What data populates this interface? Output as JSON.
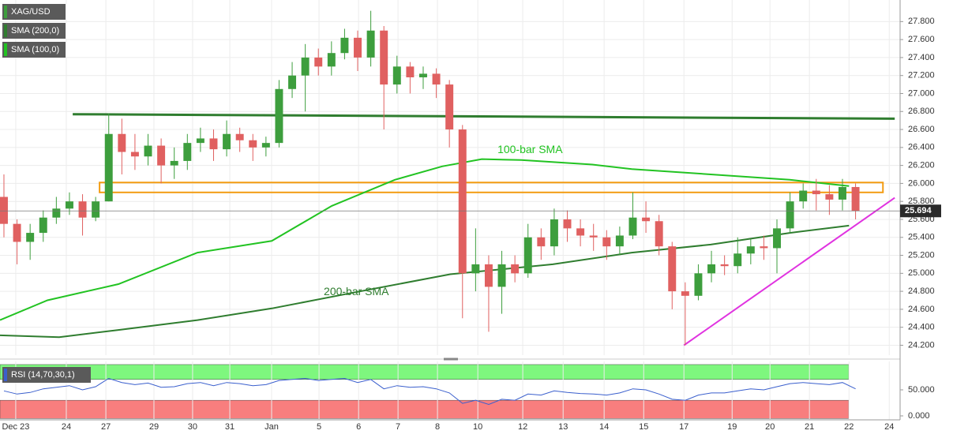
{
  "chart_data": [
    {
      "type": "candlestick",
      "name": "XAG/USD",
      "up_color": "#3d9e3d",
      "down_color": "#e06060",
      "grid": true,
      "xlim": [
        -0.3,
        68.4
      ],
      "ylim": [
        24.09,
        28.04
      ],
      "xticks": [
        {
          "value": 0.9,
          "label": "Dec 23"
        },
        {
          "value": 4.76,
          "label": "24"
        },
        {
          "value": 7.78,
          "label": "27"
        },
        {
          "value": 11.45,
          "label": "29"
        },
        {
          "value": 14.4,
          "label": "30"
        },
        {
          "value": 17.24,
          "label": "31"
        },
        {
          "value": 20.43,
          "label": "Jan"
        },
        {
          "value": 24.05,
          "label": "5"
        },
        {
          "value": 27.07,
          "label": "6"
        },
        {
          "value": 30.08,
          "label": "7"
        },
        {
          "value": 33.09,
          "label": "8"
        },
        {
          "value": 36.17,
          "label": "10"
        },
        {
          "value": 39.6,
          "label": "12"
        },
        {
          "value": 42.68,
          "label": "13"
        },
        {
          "value": 45.81,
          "label": "14"
        },
        {
          "value": 48.83,
          "label": "15"
        },
        {
          "value": 51.9,
          "label": "17"
        },
        {
          "value": 55.58,
          "label": "19"
        },
        {
          "value": 58.47,
          "label": "20"
        },
        {
          "value": 61.48,
          "label": "21"
        },
        {
          "value": 64.5,
          "label": "22"
        },
        {
          "value": 67.57,
          "label": "24"
        }
      ],
      "yticks": [
        {
          "value": 24.2,
          "label": "24.200"
        },
        {
          "value": 24.4,
          "label": "24.400"
        },
        {
          "value": 24.6,
          "label": "24.600"
        },
        {
          "value": 24.8,
          "label": "24.800"
        },
        {
          "value": 25.0,
          "label": "25.000"
        },
        {
          "value": 25.2,
          "label": "25.200"
        },
        {
          "value": 25.4,
          "label": "25.400"
        },
        {
          "value": 25.6,
          "label": "25.600"
        },
        {
          "value": 25.8,
          "label": "25.800"
        },
        {
          "value": 26.0,
          "label": "26.000"
        },
        {
          "value": 26.2,
          "label": "26.200"
        },
        {
          "value": 26.4,
          "label": "26.400"
        },
        {
          "value": 26.6,
          "label": "26.600"
        },
        {
          "value": 26.8,
          "label": "26.800"
        },
        {
          "value": 27.0,
          "label": "27.000"
        },
        {
          "value": 27.2,
          "label": "27.200"
        },
        {
          "value": 27.4,
          "label": "27.400"
        },
        {
          "value": 27.6,
          "label": "27.600"
        },
        {
          "value": 27.8,
          "label": "27.800"
        }
      ],
      "open": [
        25.85,
        25.55,
        25.35,
        25.45,
        25.62,
        25.72,
        25.8,
        25.62,
        25.8,
        26.55,
        26.35,
        26.3,
        26.42,
        26.2,
        26.25,
        26.45,
        26.5,
        26.38,
        26.55,
        26.48,
        26.4,
        26.45,
        27.05,
        27.2,
        27.4,
        27.3,
        27.45,
        27.62,
        27.4,
        27.7,
        27.1,
        27.3,
        27.18,
        27.22,
        27.1,
        26.6,
        25.0,
        25.1,
        24.85,
        25.1,
        25.0,
        25.4,
        25.3,
        25.6,
        25.5,
        25.42,
        25.4,
        25.3,
        25.42,
        25.62,
        25.58,
        25.3,
        24.8,
        24.75,
        25.0,
        25.1,
        25.08,
        25.22,
        25.3,
        25.28,
        25.5,
        25.8,
        25.92,
        25.88,
        25.82,
        25.96
      ],
      "high": [
        26.1,
        25.6,
        25.55,
        25.7,
        25.85,
        25.9,
        25.88,
        25.85,
        26.78,
        26.72,
        26.55,
        26.55,
        26.5,
        26.4,
        26.55,
        26.62,
        26.6,
        26.7,
        26.62,
        26.55,
        26.52,
        27.15,
        27.35,
        27.55,
        27.5,
        27.58,
        27.72,
        27.7,
        27.92,
        27.75,
        27.42,
        27.35,
        27.3,
        27.28,
        27.15,
        26.65,
        25.5,
        25.2,
        25.25,
        25.2,
        25.55,
        25.5,
        25.72,
        25.7,
        25.6,
        25.55,
        25.48,
        25.52,
        25.9,
        25.8,
        25.65,
        25.35,
        24.9,
        25.1,
        25.25,
        25.2,
        25.4,
        25.38,
        25.42,
        25.6,
        25.9,
        26.0,
        26.05,
        25.98,
        26.05,
        26.0
      ],
      "low": [
        25.4,
        25.1,
        25.15,
        25.35,
        25.55,
        25.65,
        25.42,
        25.58,
        25.8,
        26.1,
        26.15,
        26.2,
        26.0,
        26.05,
        26.15,
        26.35,
        26.25,
        26.3,
        26.35,
        26.25,
        26.3,
        26.4,
        26.95,
        26.8,
        27.2,
        27.2,
        27.38,
        27.25,
        27.3,
        26.6,
        27.0,
        27.0,
        27.05,
        26.95,
        26.4,
        24.5,
        24.8,
        24.35,
        24.55,
        24.9,
        24.95,
        25.15,
        25.2,
        25.35,
        25.3,
        25.25,
        25.15,
        25.2,
        25.38,
        25.45,
        25.2,
        24.6,
        24.2,
        24.7,
        24.9,
        24.98,
        25.0,
        25.1,
        25.15,
        25.0,
        25.45,
        25.72,
        25.7,
        25.65,
        25.7,
        25.6
      ],
      "close": [
        25.55,
        25.35,
        25.45,
        25.62,
        25.72,
        25.8,
        25.62,
        25.8,
        26.55,
        26.35,
        26.3,
        26.42,
        26.2,
        26.25,
        26.45,
        26.5,
        26.38,
        26.55,
        26.48,
        26.4,
        26.45,
        27.05,
        27.2,
        27.4,
        27.3,
        27.45,
        27.62,
        27.4,
        27.7,
        27.1,
        27.3,
        27.18,
        27.22,
        27.1,
        26.6,
        25.0,
        25.1,
        24.85,
        25.1,
        25.0,
        25.4,
        25.3,
        25.6,
        25.5,
        25.42,
        25.4,
        25.3,
        25.42,
        25.62,
        25.58,
        25.3,
        24.8,
        24.75,
        25.0,
        25.1,
        25.08,
        25.22,
        25.3,
        25.28,
        25.5,
        25.8,
        25.92,
        25.88,
        25.82,
        25.96,
        25.694
      ],
      "series": [
        {
          "name": "SMA (200,0)",
          "color": "#2f7d2f",
          "x": [
            -0.3,
            4.22,
            8.74,
            14.77,
            20.44,
            26.82,
            34.06,
            41.89,
            47.92,
            53.95,
            59.98,
            64.5
          ],
          "values": [
            24.31,
            24.29,
            24.37,
            24.48,
            24.61,
            24.79,
            24.99,
            25.1,
            25.23,
            25.32,
            25.45,
            25.53
          ]
        },
        {
          "name": "SMA (100,0)",
          "color": "#22c322",
          "x": [
            -0.3,
            3.32,
            8.74,
            14.77,
            20.44,
            25.02,
            29.84,
            33.45,
            36.47,
            39.48,
            44.91,
            47.92,
            53.95,
            59.98,
            64.5
          ],
          "values": [
            24.48,
            24.7,
            24.88,
            25.23,
            25.36,
            25.75,
            26.04,
            26.19,
            26.27,
            26.26,
            26.21,
            26.16,
            26.1,
            26.04,
            25.97
          ]
        }
      ],
      "lines": [
        {
          "color": "#2f7d2f",
          "x": [
            5.25,
            67.99
          ],
          "y": [
            26.77,
            26.72
          ]
        },
        {
          "color": "#e033e0",
          "x": [
            51.9,
            67.99
          ],
          "y": [
            24.2,
            25.84
          ]
        }
      ],
      "zone": {
        "color": "#f39c12",
        "x": [
          7.3,
          67.09
        ],
        "y": [
          25.9,
          26.01
        ]
      },
      "annotations": [
        {
          "text": "100-bar SMA",
          "color": "#22c322",
          "x": 37.67,
          "y": 26.37
        },
        {
          "text": "200-bar SMA",
          "color": "#2f7d2f",
          "x": 24.41,
          "y": 24.79
        }
      ]
    },
    {
      "type": "line",
      "name": "RSI (14,70,30,1)",
      "ylim": [
        -7.6,
        104.5
      ],
      "yticks": [
        {
          "value": 0,
          "label": "0.000"
        },
        {
          "value": 50,
          "label": "50.000"
        }
      ],
      "bands": [
        {
          "from": 70,
          "to": 98.5,
          "color": "#7ef77e"
        },
        {
          "from": -5,
          "to": 30,
          "color": "#f87e7e"
        }
      ],
      "series": [
        {
          "color": "#3a5fcd",
          "values": [
            48,
            42,
            45,
            52,
            55,
            58,
            50,
            56,
            72,
            64,
            60,
            63,
            55,
            56,
            62,
            64,
            58,
            64,
            62,
            58,
            60,
            68,
            70,
            72,
            68,
            70,
            72,
            64,
            70,
            52,
            58,
            55,
            56,
            52,
            44,
            24,
            30,
            22,
            32,
            30,
            42,
            40,
            48,
            45,
            43,
            42,
            40,
            44,
            52,
            50,
            42,
            32,
            30,
            40,
            44,
            44,
            48,
            52,
            50,
            56,
            62,
            64,
            62,
            60,
            64,
            52
          ]
        }
      ]
    }
  ]
}
